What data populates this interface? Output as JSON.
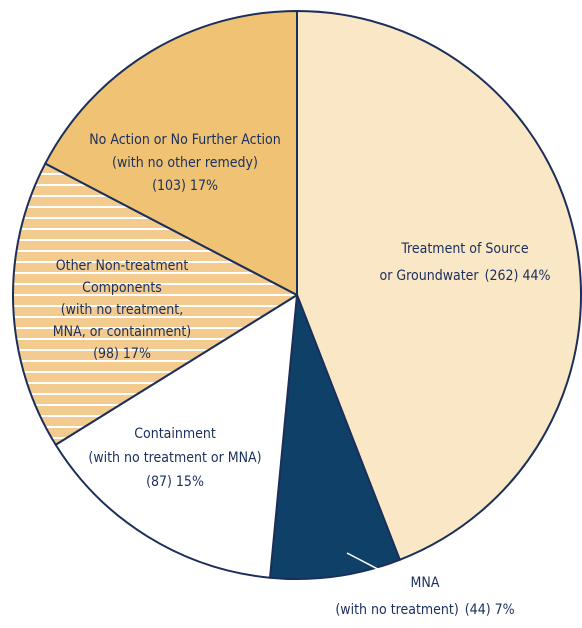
{
  "chart_data": {
    "type": "pie",
    "categories": [
      [
        "Treatment of Source",
        "or Groundwater"
      ],
      [
        "MNA",
        "(with no treatment)"
      ],
      [
        "Containment",
        "(with no treatment or MNA)"
      ],
      [
        "Other Non-treatment",
        "Components",
        "(with no treatment,",
        "MNA, or containment)"
      ],
      [
        "No Action or No Further Action",
        "(with no other remedy)"
      ]
    ],
    "values": [
      262,
      44,
      87,
      98,
      103
    ],
    "value_labels": [
      "(262)  44%",
      "(44)  7%",
      "(87)  15%",
      "(98)  17%",
      "(103)  17%"
    ],
    "colors": [
      "#f9e7c6",
      "#0f4068",
      "#ffffff",
      "#f3cb8e",
      "#f0c273"
    ],
    "hatched": [
      false,
      false,
      false,
      true,
      false
    ],
    "start_angle": 0,
    "direction": "clockwise"
  }
}
